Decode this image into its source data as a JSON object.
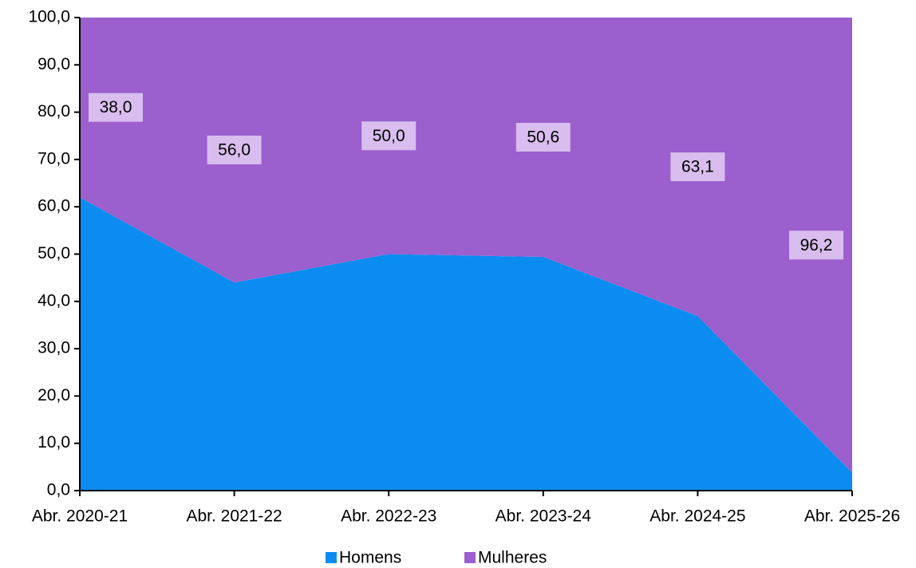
{
  "chart_data": {
    "type": "stacked-area",
    "categories": [
      "Abr. 2020-21",
      "Abr. 2021-22",
      "Abr. 2022-23",
      "Abr. 2023-24",
      "Abr. 2024-25",
      "Abr. 2025-26"
    ],
    "series": [
      {
        "name": "Homens",
        "color": "#0b8cf0",
        "values": [
          62.0,
          44.0,
          50.0,
          49.4,
          36.9,
          3.8
        ]
      },
      {
        "name": "Mulheres",
        "color": "#9b5fce",
        "values": [
          38.0,
          56.0,
          50.0,
          50.6,
          63.1,
          96.2
        ],
        "value_labels": [
          "38,0",
          "56,0",
          "50,0",
          "50,6",
          "63,1",
          "96,2"
        ]
      }
    ],
    "ylim": [
      0,
      100
    ],
    "yticks": [
      {
        "value": 0,
        "label": "0,0"
      },
      {
        "value": 10,
        "label": "10,0"
      },
      {
        "value": 20,
        "label": "20,0"
      },
      {
        "value": 30,
        "label": "30,0"
      },
      {
        "value": 40,
        "label": "40,0"
      },
      {
        "value": 50,
        "label": "50,0"
      },
      {
        "value": 60,
        "label": "60,0"
      },
      {
        "value": 70,
        "label": "70,0"
      },
      {
        "value": 80,
        "label": "80,0"
      },
      {
        "value": 90,
        "label": "90,0"
      },
      {
        "value": 100,
        "label": "100,0"
      }
    ],
    "legend": "bottom"
  }
}
